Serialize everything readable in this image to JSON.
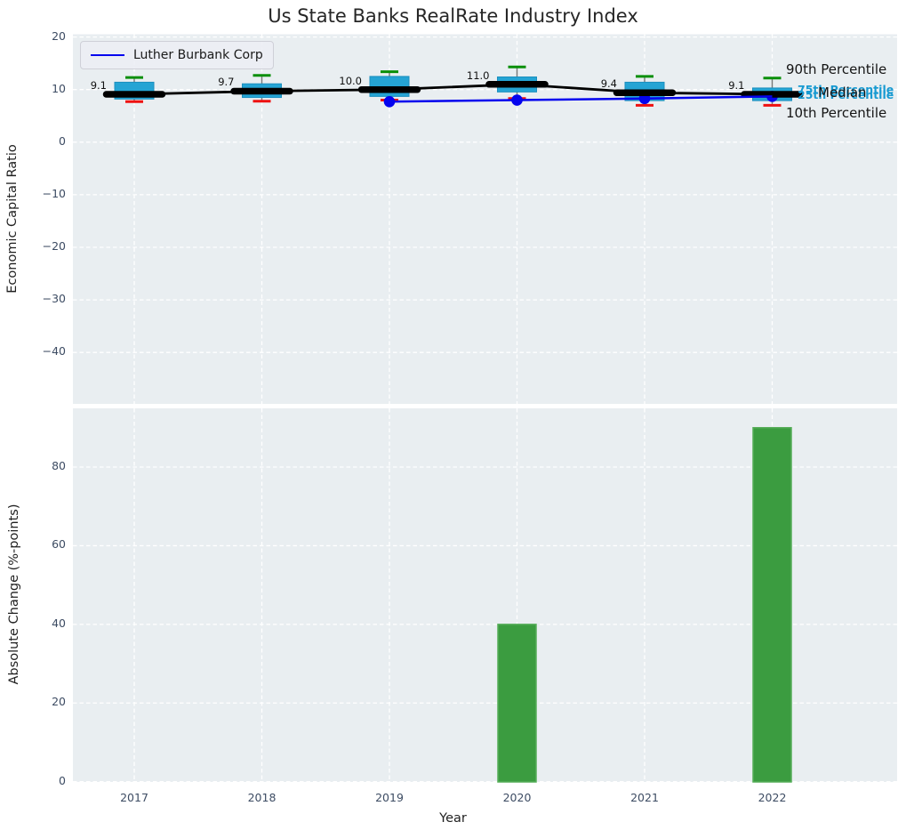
{
  "title": "Us State Banks RealRate Industry Index",
  "legend": {
    "label": "Luther Burbank Corp"
  },
  "annotations": {
    "p90": "90th Percentile",
    "p75": "75th Percentile",
    "median": "Median",
    "p25": "25th Percentile",
    "p10": "10th Percentile"
  },
  "axes": {
    "top": {
      "ylabel": "Economic Capital Ratio",
      "yticks": [
        "20",
        "10",
        "0",
        "−10",
        "−20",
        "−30",
        "−40"
      ],
      "ytick_values": [
        20,
        10,
        0,
        -10,
        -20,
        -30,
        -40
      ]
    },
    "bottom": {
      "ylabel": "Absolute Change (%-points)",
      "xlabel": "Year",
      "yticks": [
        "0",
        "20",
        "40",
        "60",
        "80"
      ],
      "ytick_values": [
        0,
        20,
        40,
        60,
        80
      ],
      "xticks": [
        "2017",
        "2018",
        "2019",
        "2020",
        "2021",
        "2022"
      ]
    }
  },
  "colors": {
    "plot_bg": "#e9eef1",
    "grid": "#ffffff",
    "box_fill": "#25a4d4",
    "box_edge": "#1b8fbe",
    "whisker": "#777777",
    "cap_90": "#0a8f0a",
    "cap_10": "#ee1111",
    "median_line": "#000000",
    "company_line": "#0404ee",
    "bar_fill": "#3b9c40",
    "bar_edge": "#55ad58",
    "annotation_cyan": "#189ad1",
    "tick_text": "#3d4c63"
  },
  "chart_data": [
    {
      "type": "boxplot+line",
      "title": "Us State Banks RealRate Industry Index",
      "ylabel": "Economic Capital Ratio",
      "ylim": [
        -50,
        20.5
      ],
      "grid": "on",
      "legend_position": "upper-left",
      "categories": [
        2017,
        2018,
        2019,
        2020,
        2021,
        2022
      ],
      "series": [
        {
          "name": "Industry Median",
          "values": [
            9.1,
            9.7,
            10.0,
            11.0,
            9.4,
            9.1
          ]
        },
        {
          "name": "75th Percentile",
          "values": [
            11.4,
            11.1,
            12.5,
            12.4,
            11.4,
            10.3
          ]
        },
        {
          "name": "25th Percentile",
          "values": [
            8.2,
            8.5,
            8.7,
            9.55,
            7.9,
            7.9
          ]
        },
        {
          "name": "90th Percentile",
          "values": [
            12.3,
            12.7,
            13.4,
            14.3,
            12.5,
            12.2
          ]
        },
        {
          "name": "10th Percentile",
          "values": [
            7.7,
            7.8,
            8.0,
            8.3,
            7.0,
            7.0
          ]
        },
        {
          "name": "Luther Burbank Corp",
          "values": [
            null,
            null,
            7.7,
            8.0,
            8.3,
            8.7
          ]
        }
      ],
      "median_labels": [
        "9.1",
        "9.7",
        "10.0",
        "11.0",
        "9.4",
        "9.1"
      ]
    },
    {
      "type": "bar",
      "ylabel": "Absolute Change (%-points)",
      "xlabel": "Year",
      "ylim": [
        0,
        95
      ],
      "grid": "on",
      "categories": [
        2017,
        2018,
        2019,
        2020,
        2021,
        2022
      ],
      "values": [
        0,
        0,
        0,
        40,
        0,
        90
      ]
    }
  ]
}
